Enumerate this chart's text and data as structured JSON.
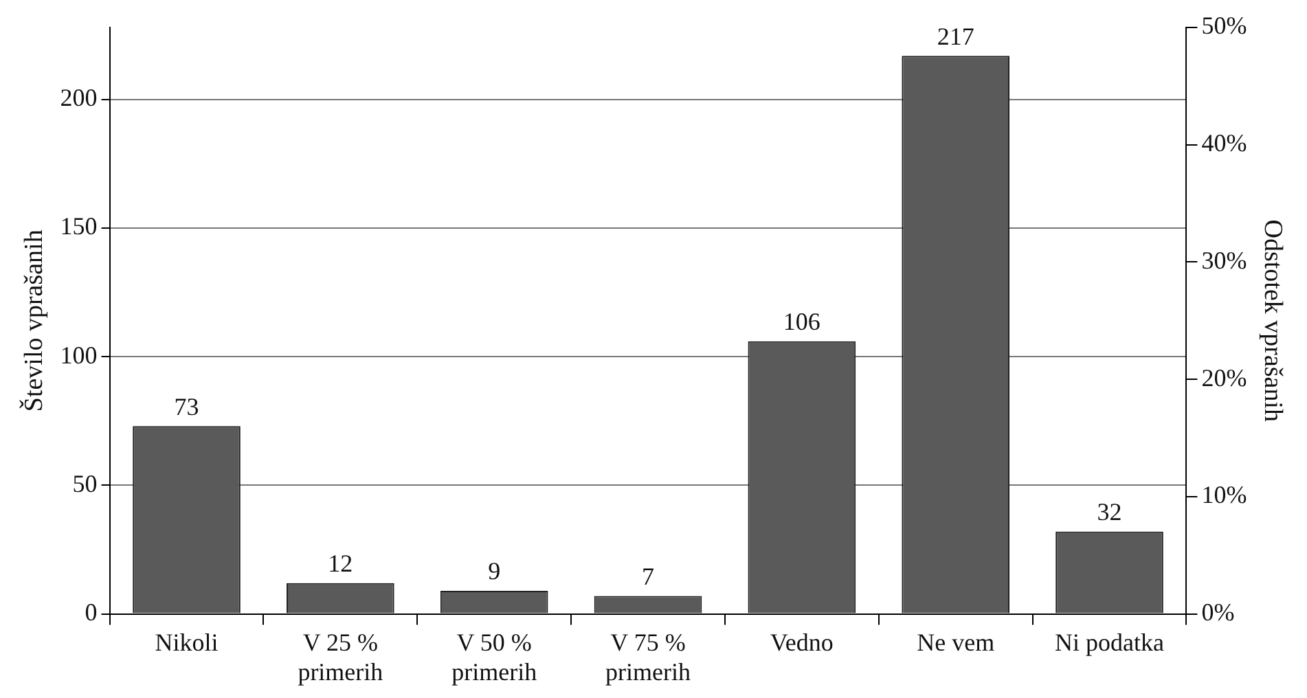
{
  "chart_data": {
    "type": "bar",
    "ylabel": "Število vprašanih",
    "y2label": "Odstotek vprašanih",
    "categories": [
      "Nikoli",
      "V 25 % primerih",
      "V 50 % primerih",
      "V 75 % primerih",
      "Vedno",
      "Ne vem",
      "Ni podatka"
    ],
    "values": [
      73,
      12,
      9,
      7,
      106,
      217,
      32
    ],
    "color": "#5a5a5a",
    "ylim": [
      0,
      228
    ],
    "yticks": [
      0,
      50,
      100,
      150,
      200
    ],
    "y2lim": [
      0,
      50
    ],
    "y2ticks": [
      {
        "value": 0,
        "label": "0%"
      },
      {
        "value": 10,
        "label": "10%"
      },
      {
        "value": 20,
        "label": "20%"
      },
      {
        "value": 30,
        "label": "30%"
      },
      {
        "value": 40,
        "label": "40%"
      },
      {
        "value": 50,
        "label": "50%"
      }
    ],
    "grid": "y",
    "legend": false,
    "data_labels": true
  }
}
